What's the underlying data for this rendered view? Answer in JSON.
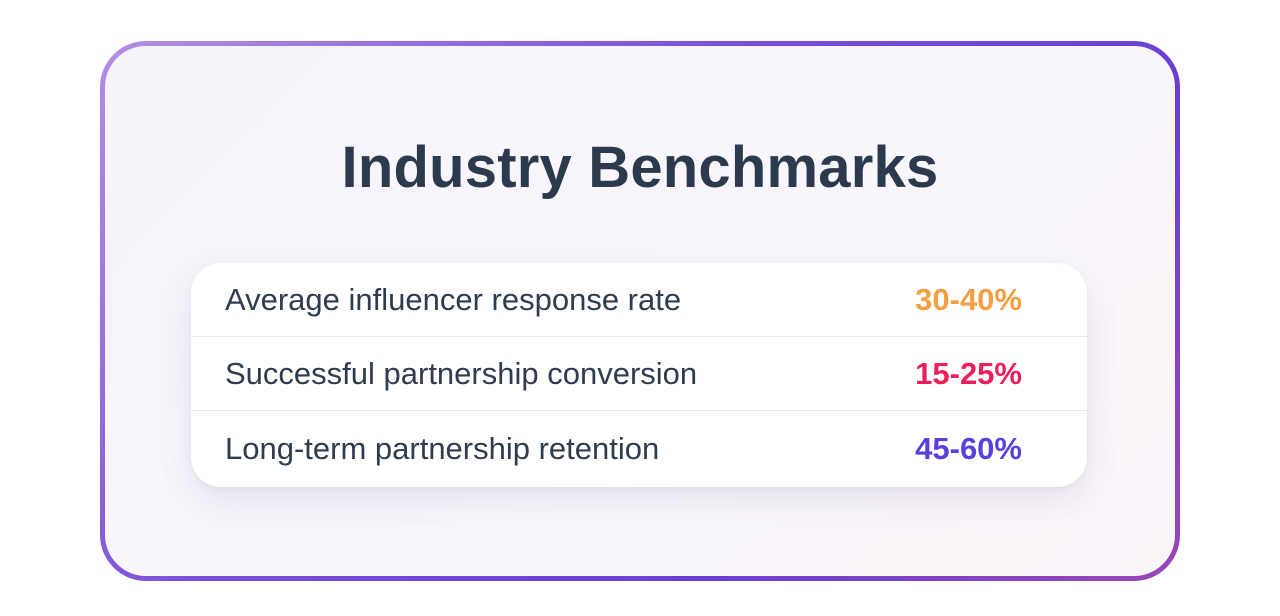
{
  "title": "Industry Benchmarks",
  "benchmarks": [
    {
      "label": "Average influencer response rate",
      "value": "30-40%",
      "color": "#f59e42"
    },
    {
      "label": "Successful partnership conversion",
      "value": "15-25%",
      "color": "#ec1e5c"
    },
    {
      "label": "Long-term partnership retention",
      "value": "45-60%",
      "color": "#5b3fdc"
    }
  ]
}
